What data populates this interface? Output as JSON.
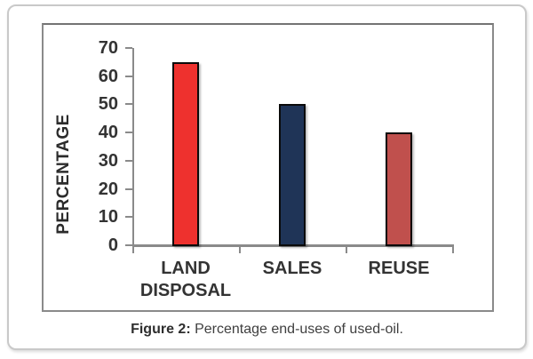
{
  "figure_caption": {
    "label": "Figure 2:",
    "text": " Percentage end-uses of used-oil."
  },
  "chart_data": {
    "type": "bar",
    "title": "",
    "categories": [
      "LAND DISPOSAL",
      "SALES",
      "REUSE"
    ],
    "values": [
      65,
      50,
      40
    ],
    "bar_colors": [
      "#ee312e",
      "#1f3457",
      "#c0504d"
    ],
    "bar_border_color": "#0a0a0a",
    "xlabel": "",
    "ylabel": "PERCENTAGE",
    "ylim": [
      0,
      70
    ],
    "yticks": [
      0,
      10,
      20,
      30,
      40,
      50,
      60,
      70
    ],
    "grid": false,
    "legend": "none",
    "axis_color": "#8a8a8a",
    "tick_label_color": "#333333",
    "category_label_color": "#333333"
  },
  "colors": {
    "card_border": "#c9c9c9",
    "frame_border": "#8a8a8a",
    "caption_text": "#3f3f3f",
    "background": "#ffffff"
  }
}
